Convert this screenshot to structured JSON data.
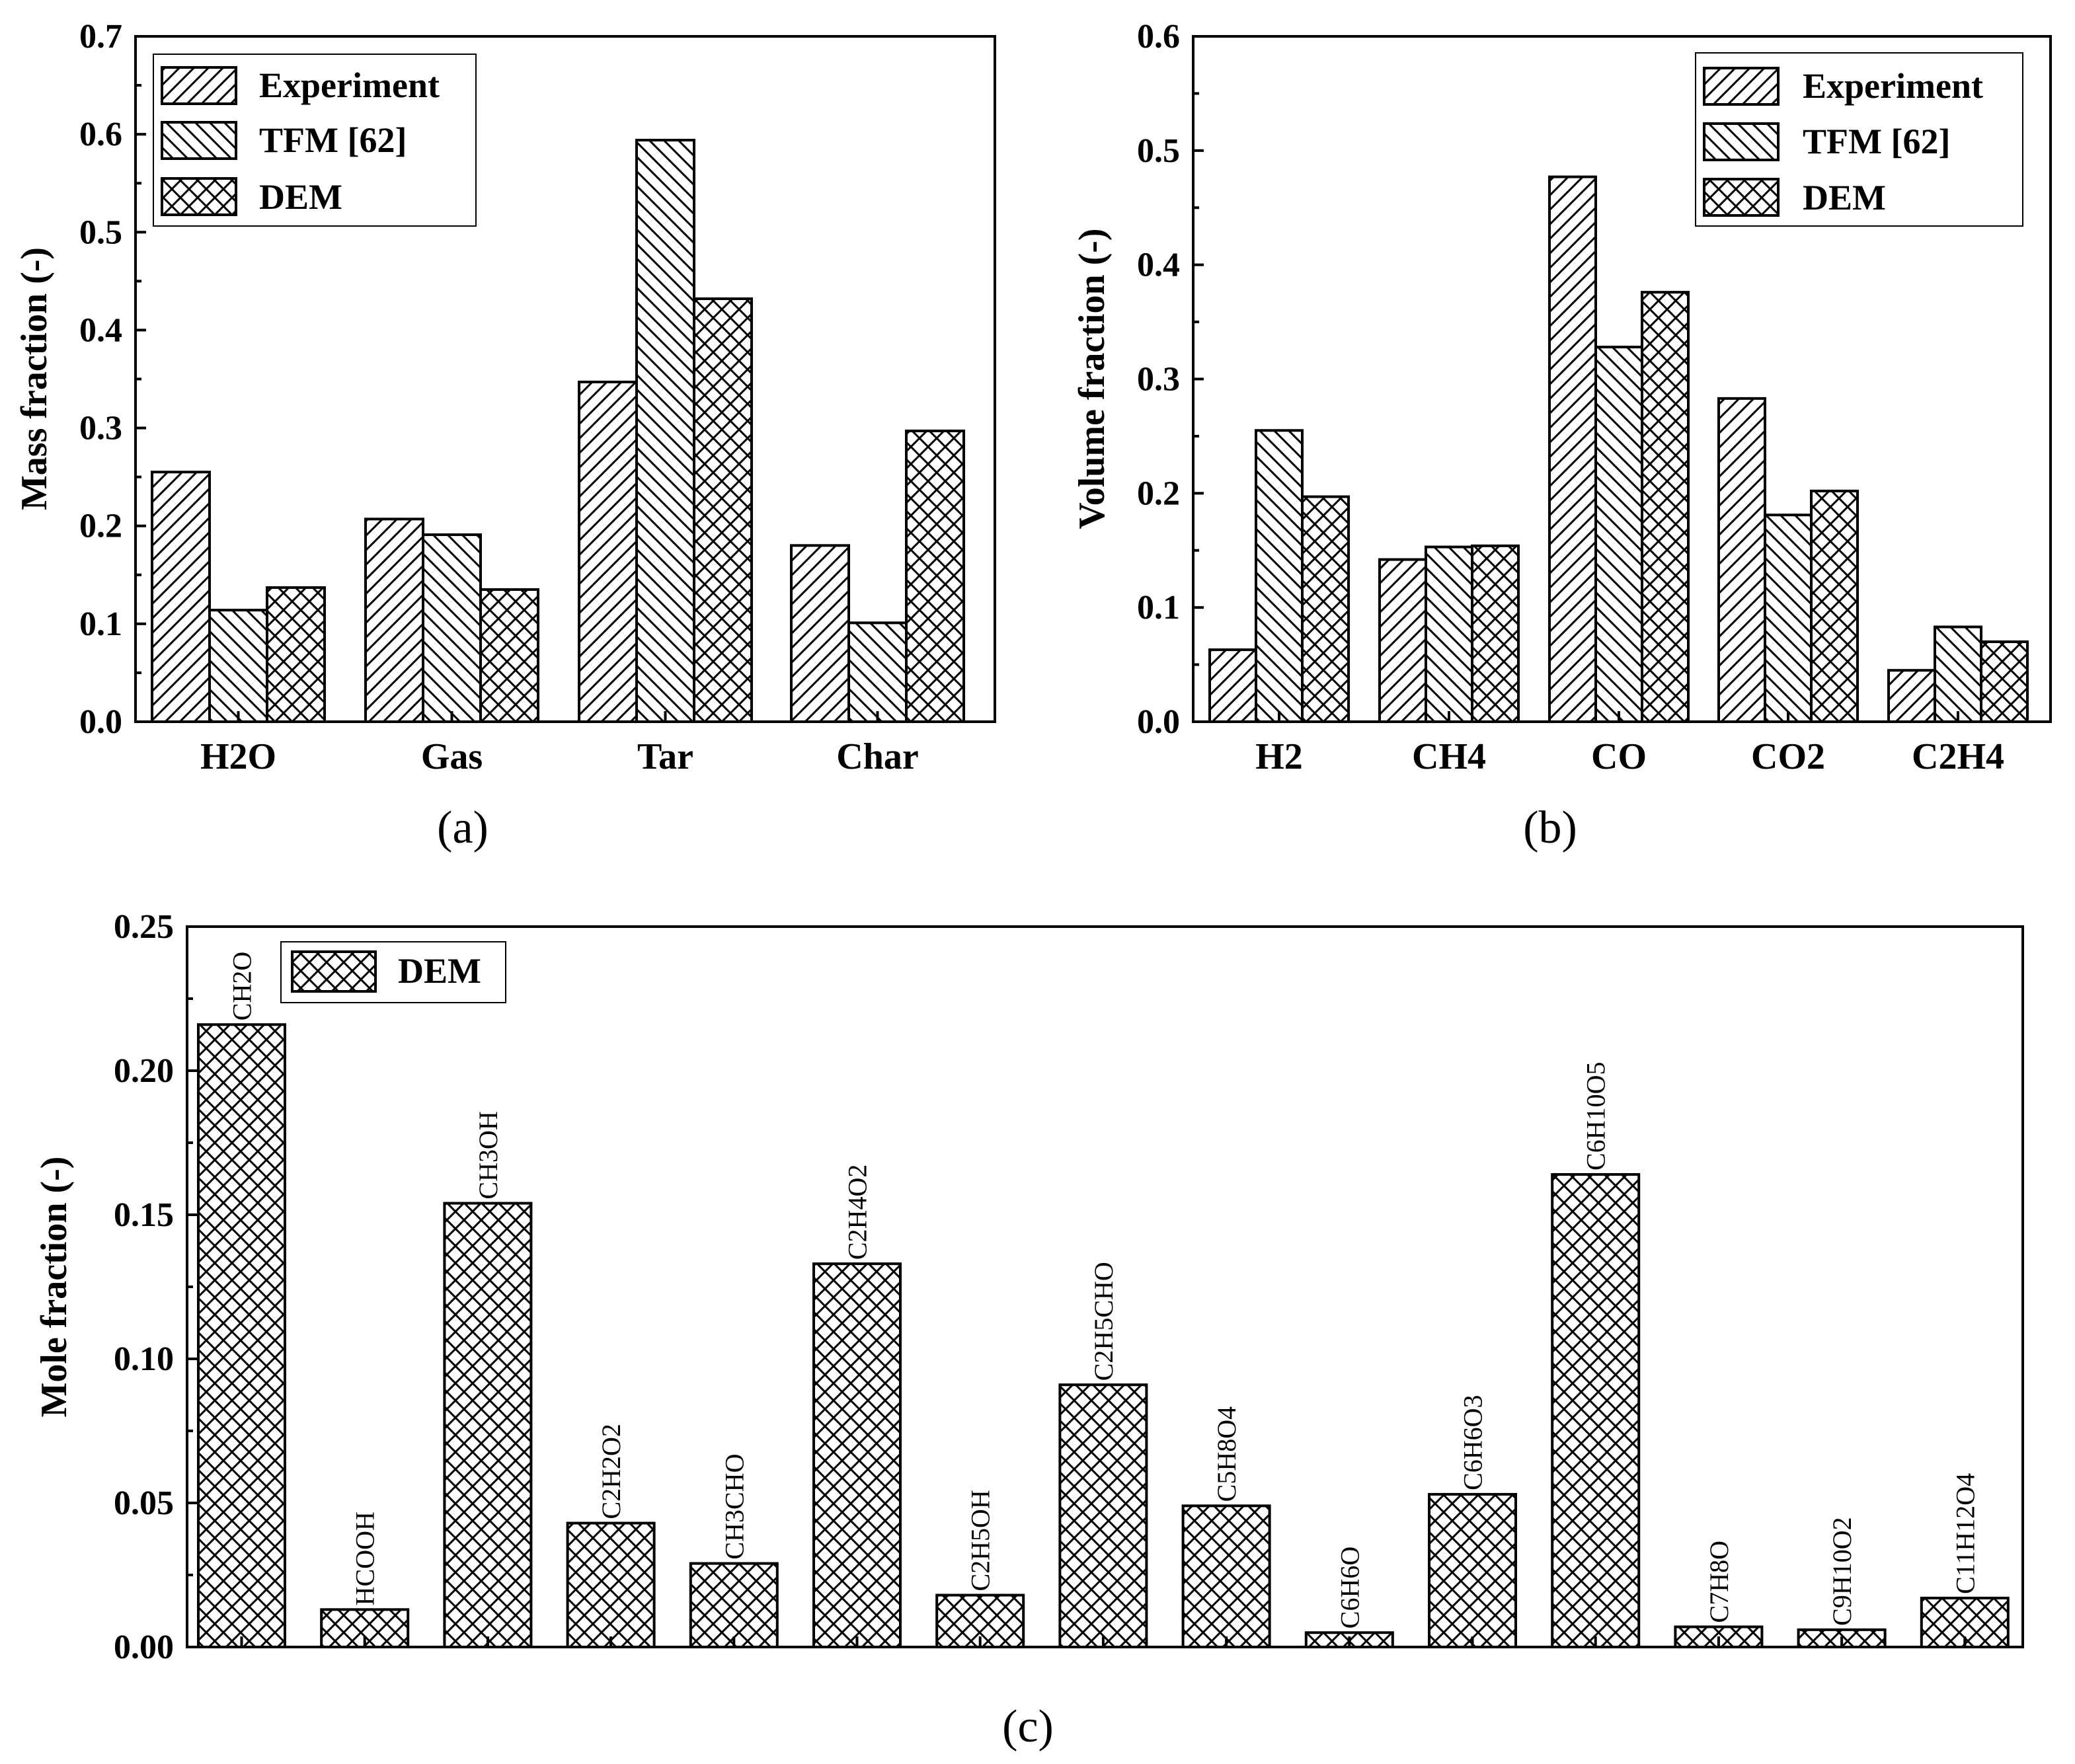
{
  "chart_data": [
    {
      "id": "a",
      "type": "bar",
      "caption": "(a)",
      "categories": [
        "H2O",
        "Gas",
        "Tar",
        "Char"
      ],
      "series": [
        {
          "name": "Experiment",
          "values": [
            0.255,
            0.207,
            0.347,
            0.18
          ]
        },
        {
          "name": "TFM [62]",
          "values": [
            0.114,
            0.191,
            0.594,
            0.101
          ]
        },
        {
          "name": "DEM",
          "values": [
            0.137,
            0.135,
            0.432,
            0.297
          ]
        }
      ],
      "xlabel": "",
      "ylabel": "Mass fraction (-)",
      "ylim": [
        0,
        0.7
      ],
      "yticks": [
        "0.0",
        "0.1",
        "0.2",
        "0.3",
        "0.4",
        "0.5",
        "0.6",
        "0.7"
      ],
      "legend": "top-left"
    },
    {
      "id": "b",
      "type": "bar",
      "caption": "(b)",
      "categories": [
        "H2",
        "CH4",
        "CO",
        "CO2",
        "C2H4"
      ],
      "series": [
        {
          "name": "Experiment",
          "values": [
            0.063,
            0.142,
            0.477,
            0.283,
            0.045
          ]
        },
        {
          "name": "TFM [62]",
          "values": [
            0.255,
            0.153,
            0.328,
            0.181,
            0.083
          ]
        },
        {
          "name": "DEM",
          "values": [
            0.197,
            0.154,
            0.376,
            0.202,
            0.07
          ]
        }
      ],
      "xlabel": "",
      "ylabel": "Volume fraction (-)",
      "ylim": [
        0,
        0.6
      ],
      "yticks": [
        "0.0",
        "0.1",
        "0.2",
        "0.3",
        "0.4",
        "0.5",
        "0.6"
      ],
      "legend": "top-right"
    },
    {
      "id": "c",
      "type": "bar",
      "caption": "(c)",
      "categories": [
        "CH2O",
        "HCOOH",
        "CH3OH",
        "C2H2O2",
        "CH3CHO",
        "C2H4O2",
        "C2H5OH",
        "C2H5CHO",
        "C5H8O4",
        "C6H6O",
        "C6H6O3",
        "C6H10O5",
        "C7H8O",
        "C9H10O2",
        "C11H12O4"
      ],
      "series": [
        {
          "name": "DEM",
          "values": [
            0.216,
            0.013,
            0.154,
            0.043,
            0.029,
            0.133,
            0.018,
            0.091,
            0.049,
            0.005,
            0.053,
            0.164,
            0.007,
            0.006,
            0.017
          ]
        }
      ],
      "xlabel": "",
      "ylabel": "Mole fraction (-)",
      "ylim": [
        0,
        0.25
      ],
      "yticks": [
        "0.00",
        "0.05",
        "0.10",
        "0.15",
        "0.20",
        "0.25"
      ],
      "legend": "top-left"
    }
  ]
}
